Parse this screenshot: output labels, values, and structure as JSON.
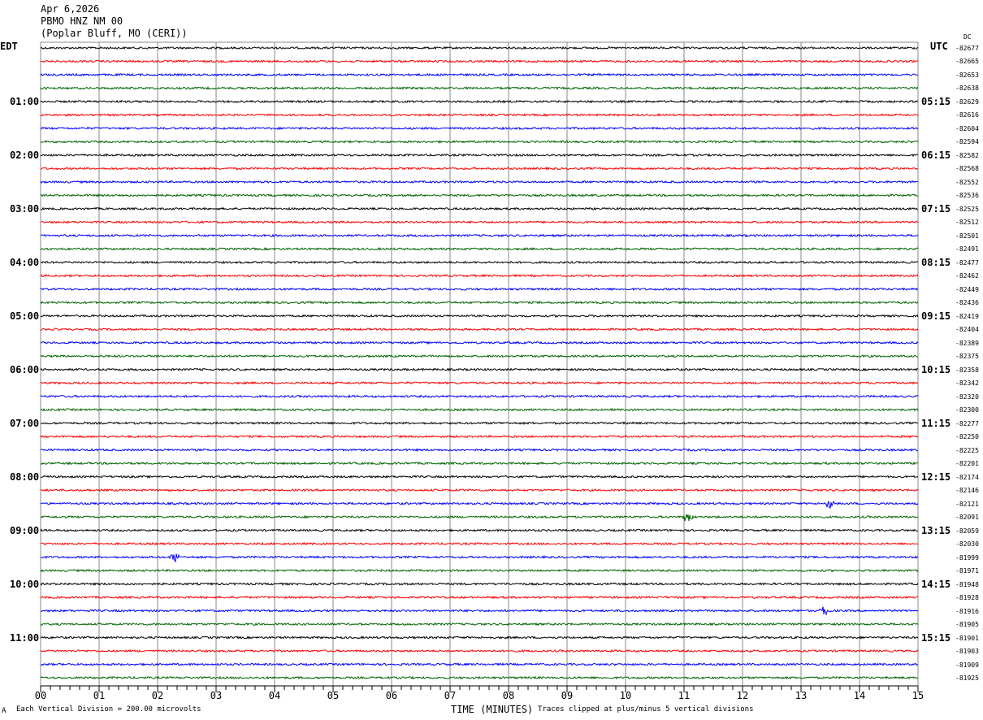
{
  "header": {
    "date": "Apr 6,2026",
    "station": "PBMO HNZ NM 00",
    "location": "(Poplar Bluff, MO (CERI))"
  },
  "left_tz": "EDT",
  "right_tz": "UTC",
  "dc_label": "DC",
  "footer": {
    "scale": "Each Vertical Division =  200.00 microvolts",
    "xlabel": "TIME (MINUTES)",
    "clip": "Traces clipped at plus/minus 5 vertical divisions",
    "mark": "A"
  },
  "chart_data": {
    "type": "line",
    "title": "Apr 6,2026 PBMO HNZ NM 00 (Poplar Bluff, MO (CERI))",
    "xlabel": "TIME (MINUTES)",
    "xlim": [
      0,
      15
    ],
    "x_ticks": [
      "00",
      "01",
      "02",
      "03",
      "04",
      "05",
      "06",
      "07",
      "08",
      "09",
      "10",
      "11",
      "12",
      "13",
      "14",
      "15"
    ],
    "trace_colors": [
      "#000000",
      "#ff0000",
      "#0000ff",
      "#006400"
    ],
    "grid": true,
    "left_labels": [
      "01:00",
      "02:00",
      "03:00",
      "04:00",
      "05:00",
      "06:00",
      "07:00",
      "08:00",
      "09:00",
      "10:00",
      "11:00"
    ],
    "right_labels": [
      "05:15",
      "06:15",
      "07:15",
      "08:15",
      "09:15",
      "10:15",
      "11:15",
      "12:15",
      "13:15",
      "14:15",
      "15:15"
    ],
    "dc_offsets": [
      -82677,
      -82665,
      -82653,
      -82638,
      -82629,
      -82616,
      -82604,
      -82594,
      -82582,
      -82568,
      -82552,
      -82536,
      -82525,
      -82512,
      -82501,
      -82491,
      -82477,
      -82462,
      -82449,
      -82436,
      -82419,
      -82404,
      -82389,
      -82375,
      -82358,
      -82342,
      -82320,
      -82300,
      -82277,
      -82250,
      -82225,
      -82201,
      -82174,
      -82146,
      -82121,
      -82091,
      -82059,
      -82030,
      -81999,
      -81971,
      -81948,
      -81928,
      -81916,
      -81905,
      -81901,
      -81903,
      -81909,
      -81925
    ],
    "events": [
      {
        "trace": 34,
        "minute": 13.5
      },
      {
        "trace": 35,
        "minute": 11.05
      },
      {
        "trace": 38,
        "minute": 2.3
      },
      {
        "trace": 42,
        "minute": 13.4
      }
    ]
  }
}
